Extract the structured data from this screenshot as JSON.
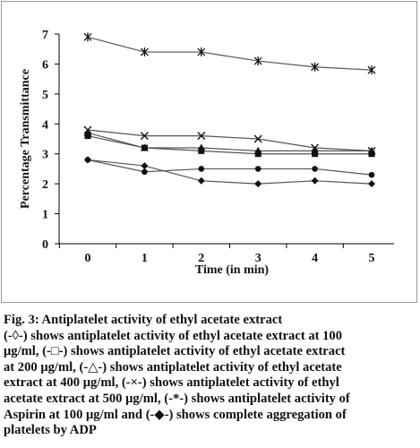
{
  "chart_data": {
    "type": "line",
    "title": "",
    "xlabel": "Time (in min)",
    "ylabel": "Percentage Transmittance",
    "x": [
      0,
      1,
      2,
      3,
      4,
      5
    ],
    "xticks": [
      "0",
      "1",
      "2",
      "3",
      "4",
      "5"
    ],
    "ylim": [
      0,
      7
    ],
    "yticks": [
      "0",
      "1",
      "2",
      "3",
      "4",
      "5",
      "6",
      "7"
    ],
    "grid": false,
    "legend": "none",
    "series": [
      {
        "marker": "asterisk",
        "values": [
          6.9,
          6.4,
          6.4,
          6.1,
          5.9,
          5.8
        ]
      },
      {
        "marker": "x",
        "values": [
          3.8,
          3.6,
          3.6,
          3.5,
          3.2,
          3.1
        ]
      },
      {
        "marker": "triangle",
        "values": [
          3.7,
          3.2,
          3.2,
          3.1,
          3.1,
          3.1
        ]
      },
      {
        "marker": "square",
        "values": [
          3.6,
          3.2,
          3.1,
          3.0,
          3.0,
          3.0
        ]
      },
      {
        "marker": "circle",
        "values": [
          2.8,
          2.4,
          2.5,
          2.5,
          2.5,
          2.3
        ]
      },
      {
        "marker": "diamond",
        "values": [
          2.8,
          2.6,
          2.1,
          2.0,
          2.1,
          2.0
        ]
      }
    ],
    "colors": {
      "line": "#555555",
      "marker": "#111111",
      "axis": "#000000"
    }
  },
  "caption": {
    "line1": "Fig. 3: Antiplatelet activity of ethyl acetate extract",
    "line2": "(-◊-) shows antiplatelet activity of ethyl acetate extract at 100",
    "line3": "μg/ml, (-□-) shows antiplatelet activity of ethyl acetate extract",
    "line4": "at 200 μg/ml, (-△-) shows antiplatelet activity of ethyl acetate",
    "line5": "extract at 400 μg/ml, (-×-) shows antiplatelet activity of ethyl",
    "line6": "acetate extract at 500 μg/ml, (-*-) shows antiplatelet activity of",
    "line7": "Aspirin at 100 μg/ml and (-◆-) shows complete aggregation of",
    "line8": "platelets by ADP"
  }
}
